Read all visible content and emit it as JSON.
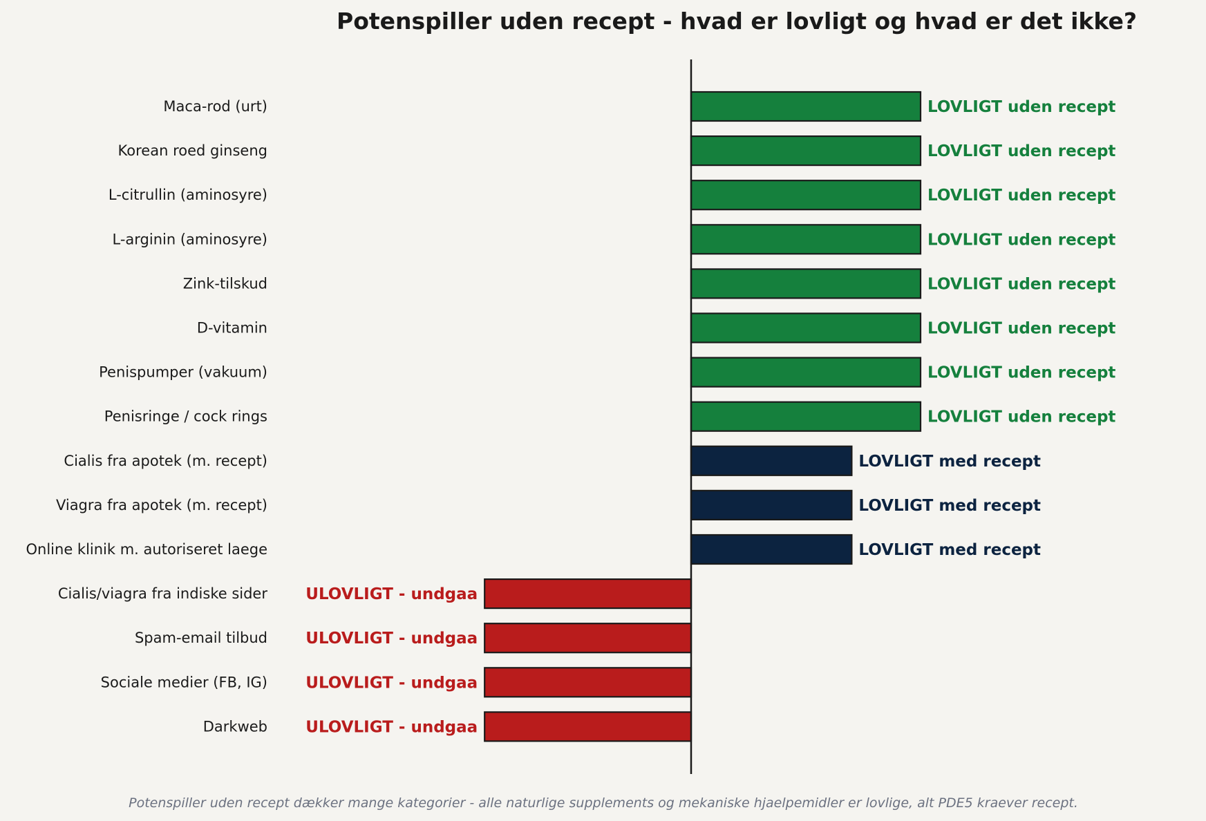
{
  "chart_data": {
    "type": "bar",
    "orientation": "horizontal",
    "title": "Potenspiller uden recept - hvad er lovligt og hvad er det ikke?",
    "footnote": "Potenspiller uden recept dækker mange kategorier - alle naturlige supplements og mekaniske hjaelpemidler er lovlige, alt PDE5 kraever recept.",
    "xlim": [
      -1.0,
      1.0
    ],
    "grid": false,
    "legend": "none",
    "colors": {
      "legal_otc": "#15803d",
      "legal_rx": "#0c2340",
      "illegal": "#b91c1c",
      "background": "#f5f4f0",
      "bar_edge": "#1a1a1a"
    },
    "categories": [
      "Maca-rod (urt)",
      "Korean roed ginseng",
      "L-citrullin (aminosyre)",
      "L-arginin (aminosyre)",
      "Zink-tilskud",
      "D-vitamin",
      "Penispumper (vakuum)",
      "Penisringe / cock rings",
      "Cialis fra apotek (m. recept)",
      "Viagra fra apotek (m. recept)",
      "Online klinik m. autoriseret laege",
      "Cialis/viagra fra indiske sider",
      "Spam-email tilbud",
      "Sociale medier (FB, IG)",
      "Darkweb"
    ],
    "values": [
      1,
      1,
      1,
      1,
      1,
      1,
      1,
      1,
      0.7,
      0.7,
      0.7,
      -0.9,
      -0.9,
      -0.9,
      -0.9
    ],
    "groups": [
      "legal_otc",
      "legal_otc",
      "legal_otc",
      "legal_otc",
      "legal_otc",
      "legal_otc",
      "legal_otc",
      "legal_otc",
      "legal_rx",
      "legal_rx",
      "legal_rx",
      "illegal",
      "illegal",
      "illegal",
      "illegal"
    ],
    "data_labels": [
      "LOVLIGT uden recept",
      "LOVLIGT uden recept",
      "LOVLIGT uden recept",
      "LOVLIGT uden recept",
      "LOVLIGT uden recept",
      "LOVLIGT uden recept",
      "LOVLIGT uden recept",
      "LOVLIGT uden recept",
      "LOVLIGT med recept",
      "LOVLIGT med recept",
      "LOVLIGT med recept",
      "ULOVLIGT - undgaa",
      "ULOVLIGT - undgaa",
      "ULOVLIGT - undgaa",
      "ULOVLIGT - undgaa"
    ]
  }
}
